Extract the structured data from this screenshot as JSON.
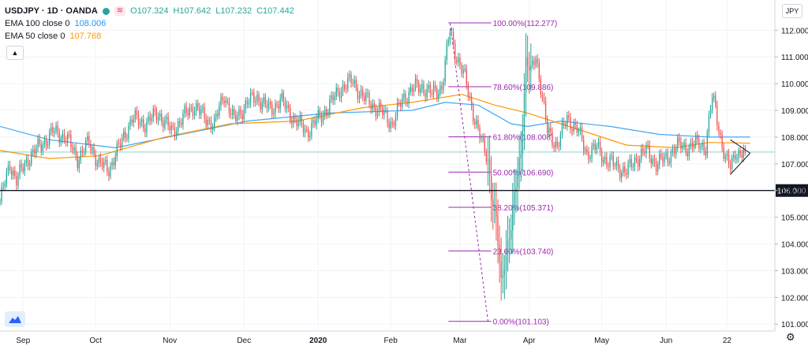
{
  "header": {
    "symbol": "USDJPY · 1D · OANDA",
    "tag": "≋",
    "open": "O107.324",
    "high": "H107.642",
    "low": "L107.232",
    "close": "C107.442"
  },
  "indicators": [
    {
      "label": "EMA 100 close 0",
      "value": "108.006",
      "color": "#2196f3"
    },
    {
      "label": "EMA 50 close 0",
      "value": "107.768",
      "color": "#ff9800"
    }
  ],
  "currency_label": "JPY",
  "collapse_icon": "chevron-up-icon",
  "logo_icon": "tradingview-logo-icon",
  "settings_icon": "gear-icon",
  "colors": {
    "up": "#26a69a",
    "down": "#ef5350",
    "fib": "#9c27b0",
    "ema100": "#42a5f5",
    "ema50": "#ff9800"
  },
  "chart_data": {
    "type": "candlestick",
    "symbol": "USDJPY",
    "timeframe": "1D",
    "y_range": [
      100.8,
      112.6
    ],
    "y_ticks": [
      "112.000",
      "111.000",
      "110.000",
      "109.000",
      "108.000",
      "107.000",
      "106.000",
      "105.000",
      "104.000",
      "103.000",
      "102.000",
      "101.000"
    ],
    "x_labels": [
      "Sep",
      "Oct",
      "Nov",
      "Dec",
      "2020",
      "Feb",
      "Mar",
      "Apr",
      "May",
      "Jun",
      "22"
    ],
    "x_label_days": [
      14,
      58,
      103,
      148,
      193,
      237,
      279,
      321,
      365,
      404,
      441
    ],
    "support_level": {
      "value": 106.0,
      "label": "106.000"
    },
    "current_price_line": 107.44,
    "fibonacci": {
      "high": 112.277,
      "low": 101.103,
      "levels": [
        {
          "label": "100.00%(112.277)",
          "value": 112.277
        },
        {
          "label": "78.60%(109.886)",
          "value": 109.886
        },
        {
          "label": "61.80%(108.008)",
          "value": 108.008
        },
        {
          "label": "50.00%(106.690)",
          "value": 106.69
        },
        {
          "label": "38.20%(105.371)",
          "value": 105.371
        },
        {
          "label": "23.60%(103.740)",
          "value": 103.74
        },
        {
          "label": "0.00%(101.103)",
          "value": 101.103
        }
      ]
    },
    "path": [
      [
        0,
        105.6
      ],
      [
        6,
        107.0
      ],
      [
        10,
        106.4
      ],
      [
        18,
        107.3
      ],
      [
        25,
        107.7
      ],
      [
        32,
        108.2
      ],
      [
        40,
        108.0
      ],
      [
        47,
        107.2
      ],
      [
        54,
        107.8
      ],
      [
        60,
        107.0
      ],
      [
        66,
        106.8
      ],
      [
        72,
        107.6
      ],
      [
        80,
        108.7
      ],
      [
        88,
        108.5
      ],
      [
        96,
        108.9
      ],
      [
        104,
        108.2
      ],
      [
        112,
        108.8
      ],
      [
        118,
        109.2
      ],
      [
        124,
        108.7
      ],
      [
        130,
        108.5
      ],
      [
        136,
        109.6
      ],
      [
        142,
        108.6
      ],
      [
        150,
        109.3
      ],
      [
        156,
        109.5
      ],
      [
        164,
        109.0
      ],
      [
        170,
        109.4
      ],
      [
        178,
        108.7
      ],
      [
        186,
        108.2
      ],
      [
        192,
        108.6
      ],
      [
        200,
        109.2
      ],
      [
        206,
        109.8
      ],
      [
        214,
        110.1
      ],
      [
        220,
        109.5
      ],
      [
        226,
        109.2
      ],
      [
        232,
        108.9
      ],
      [
        238,
        108.5
      ],
      [
        244,
        109.4
      ],
      [
        250,
        109.8
      ],
      [
        256,
        109.9
      ],
      [
        262,
        109.6
      ],
      [
        268,
        109.9
      ],
      [
        273,
        112.0
      ],
      [
        276,
        111.2
      ],
      [
        282,
        110.2
      ],
      [
        287,
        108.9
      ],
      [
        292,
        107.8
      ],
      [
        296,
        107.2
      ],
      [
        298,
        105.9
      ],
      [
        301,
        104.8
      ],
      [
        304,
        102.5
      ],
      [
        307,
        103.8
      ],
      [
        310,
        104.6
      ],
      [
        313,
        106.2
      ],
      [
        316,
        107.5
      ],
      [
        319,
        110.8
      ],
      [
        322,
        110.4
      ],
      [
        325,
        111.1
      ],
      [
        328,
        109.9
      ],
      [
        332,
        108.2
      ],
      [
        338,
        107.7
      ],
      [
        344,
        108.7
      ],
      [
        350,
        108.3
      ],
      [
        356,
        107.4
      ],
      [
        362,
        107.6
      ],
      [
        368,
        107.1
      ],
      [
        374,
        106.9
      ],
      [
        380,
        106.7
      ],
      [
        386,
        107.2
      ],
      [
        392,
        107.5
      ],
      [
        398,
        107.0
      ],
      [
        404,
        107.2
      ],
      [
        408,
        107.5
      ],
      [
        413,
        107.7
      ],
      [
        418,
        107.6
      ],
      [
        424,
        107.8
      ],
      [
        428,
        107.6
      ],
      [
        432,
        109.5
      ],
      [
        434,
        109.1
      ],
      [
        437,
        108.0
      ],
      [
        440,
        107.1
      ],
      [
        443,
        106.9
      ],
      [
        446,
        107.5
      ],
      [
        449,
        107.3
      ],
      [
        452,
        107.44
      ]
    ],
    "ema100_path": [
      [
        0,
        108.4
      ],
      [
        30,
        107.9
      ],
      [
        70,
        107.6
      ],
      [
        110,
        108.1
      ],
      [
        150,
        108.6
      ],
      [
        200,
        108.9
      ],
      [
        250,
        109.0
      ],
      [
        270,
        109.3
      ],
      [
        290,
        109.2
      ],
      [
        310,
        108.5
      ],
      [
        320,
        108.4
      ],
      [
        340,
        108.6
      ],
      [
        370,
        108.4
      ],
      [
        400,
        108.1
      ],
      [
        430,
        108.0
      ],
      [
        455,
        108.0
      ]
    ],
    "ema50_path": [
      [
        0,
        107.5
      ],
      [
        30,
        107.2
      ],
      [
        60,
        107.3
      ],
      [
        100,
        108.0
      ],
      [
        140,
        108.5
      ],
      [
        180,
        108.6
      ],
      [
        220,
        109.1
      ],
      [
        250,
        109.3
      ],
      [
        270,
        109.5
      ],
      [
        280,
        109.6
      ],
      [
        300,
        109.2
      ],
      [
        320,
        108.9
      ],
      [
        340,
        108.5
      ],
      [
        360,
        108.1
      ],
      [
        380,
        107.7
      ],
      [
        410,
        107.6
      ],
      [
        430,
        107.8
      ],
      [
        455,
        107.77
      ]
    ]
  }
}
